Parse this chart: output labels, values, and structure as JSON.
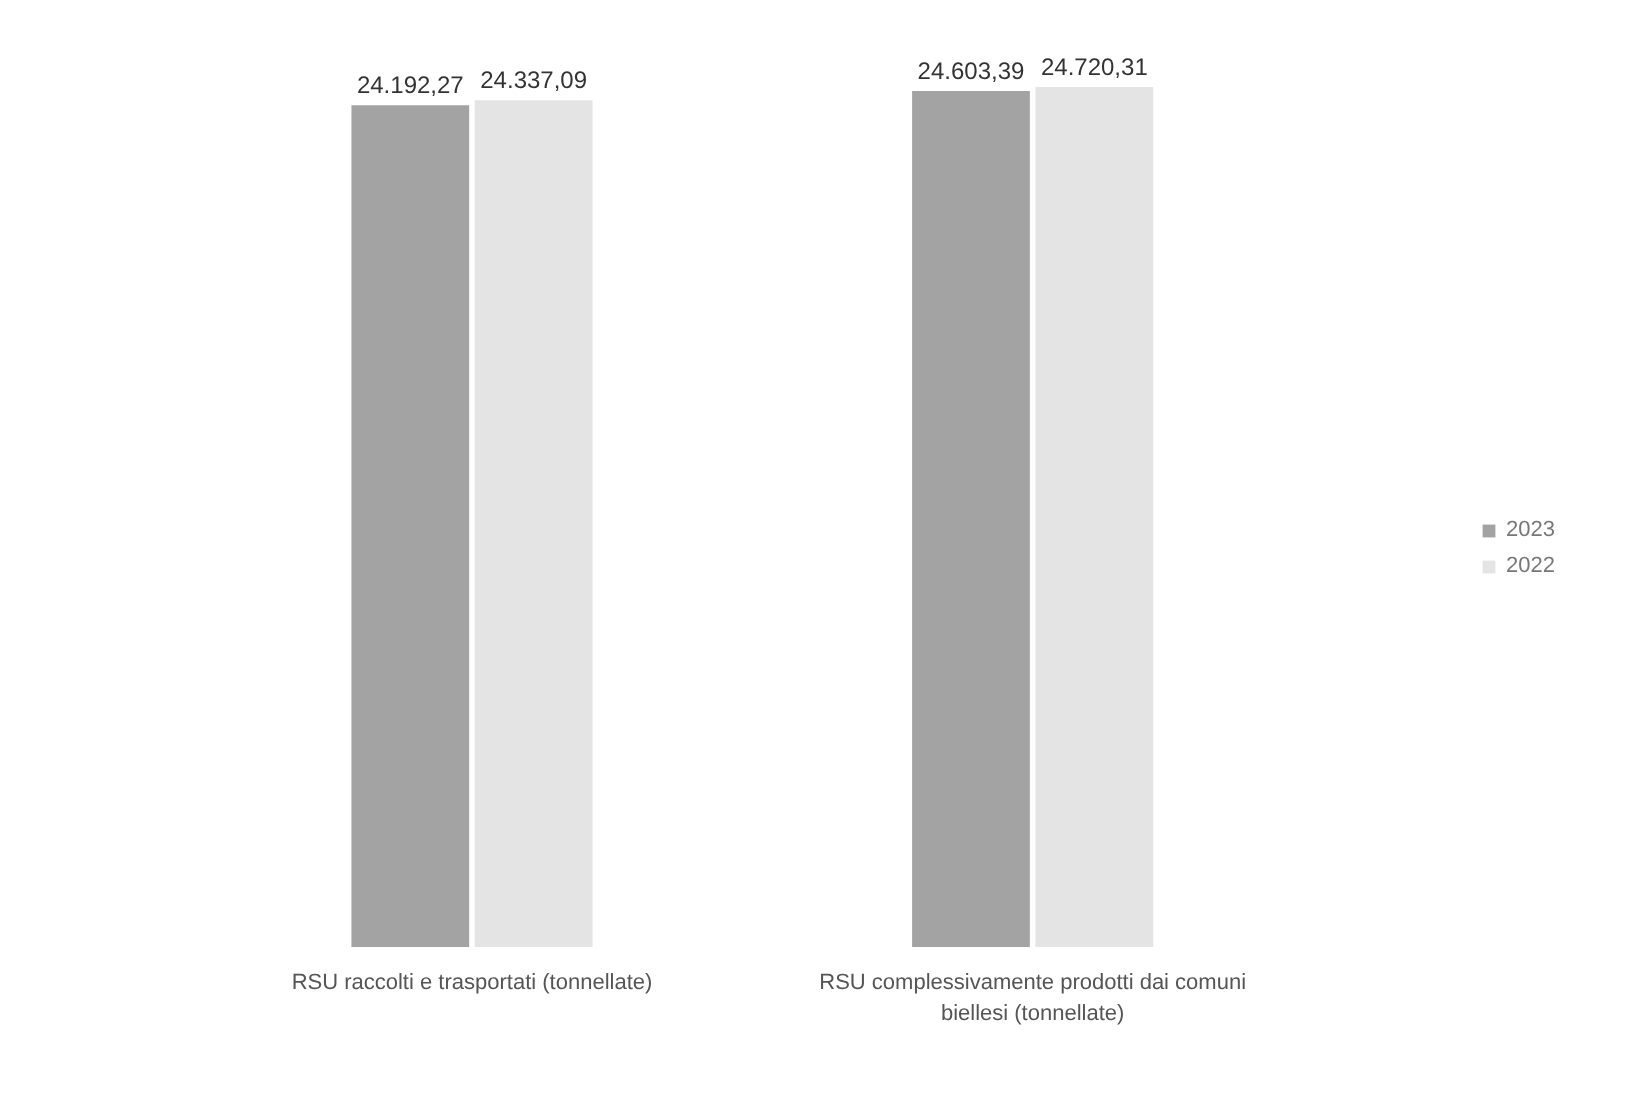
{
  "chart_data": {
    "type": "bar",
    "categories": [
      "RSU raccolti e trasportati (tonnellate)",
      "RSU complessivamente prodotti dai comuni biellesi (tonnellate)"
    ],
    "series": [
      {
        "name": "2023",
        "color": "#a3a3a3",
        "values": [
          24192.27,
          24603.39
        ],
        "value_labels": [
          "24.192,27",
          "24.603,39"
        ]
      },
      {
        "name": "2022",
        "color": "#e4e4e4",
        "values": [
          24337.09,
          24720.31
        ],
        "value_labels": [
          "24.337,09",
          "24.720,31"
        ]
      }
    ],
    "legend": "right",
    "grid": false
  }
}
